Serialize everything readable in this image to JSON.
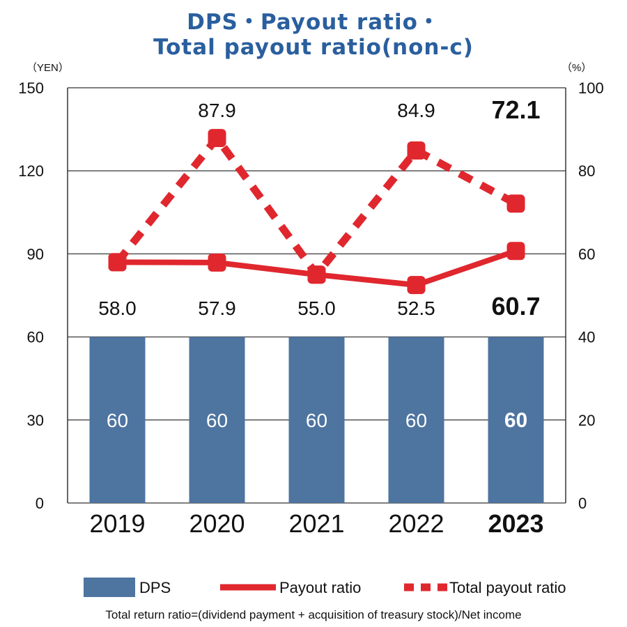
{
  "title_line1": "DPS・Payout ratio・",
  "title_line2": "Total payout ratio(non-c)",
  "left_unit": "（YEN）",
  "right_unit": "（%）",
  "footnote": "Total return ratio=(dividend payment + acquisition of treasury stock)/Net income",
  "colors": {
    "bar": "#4e74a0",
    "line": "#e0272e",
    "grid": "#555555",
    "title": "#2a5f9e"
  },
  "chart_data": {
    "type": "bar+line",
    "categories": [
      "2019",
      "2020",
      "2021",
      "2022",
      "2023"
    ],
    "highlight_category": "2023",
    "y_left": {
      "label": "（YEN）",
      "ylim": [
        0,
        150
      ],
      "ticks": [
        "0",
        "30",
        "60",
        "90",
        "120",
        "150"
      ]
    },
    "y_right": {
      "label": "（%）",
      "ylim": [
        0,
        100
      ],
      "ticks": [
        "0",
        "20",
        "40",
        "60",
        "80",
        "100"
      ]
    },
    "grid": true,
    "legend_position": "bottom",
    "series": [
      {
        "name": "DPS",
        "type": "bar",
        "axis": "left",
        "values": [
          60,
          60,
          60,
          60,
          60
        ],
        "labels": [
          "60",
          "60",
          "60",
          "60",
          "60"
        ]
      },
      {
        "name": "Payout ratio",
        "type": "line",
        "style": "solid",
        "axis": "right",
        "values": [
          58.0,
          57.9,
          55.0,
          52.5,
          60.7
        ],
        "labels": [
          "58.0",
          "57.9",
          "55.0",
          "52.5",
          "60.7"
        ]
      },
      {
        "name": "Total payout ratio",
        "type": "line",
        "style": "dashed",
        "axis": "right",
        "values": [
          58.0,
          87.9,
          55.0,
          84.9,
          72.1
        ],
        "labels": [
          "",
          "87.9",
          "",
          "84.9",
          "72.1"
        ]
      }
    ]
  }
}
